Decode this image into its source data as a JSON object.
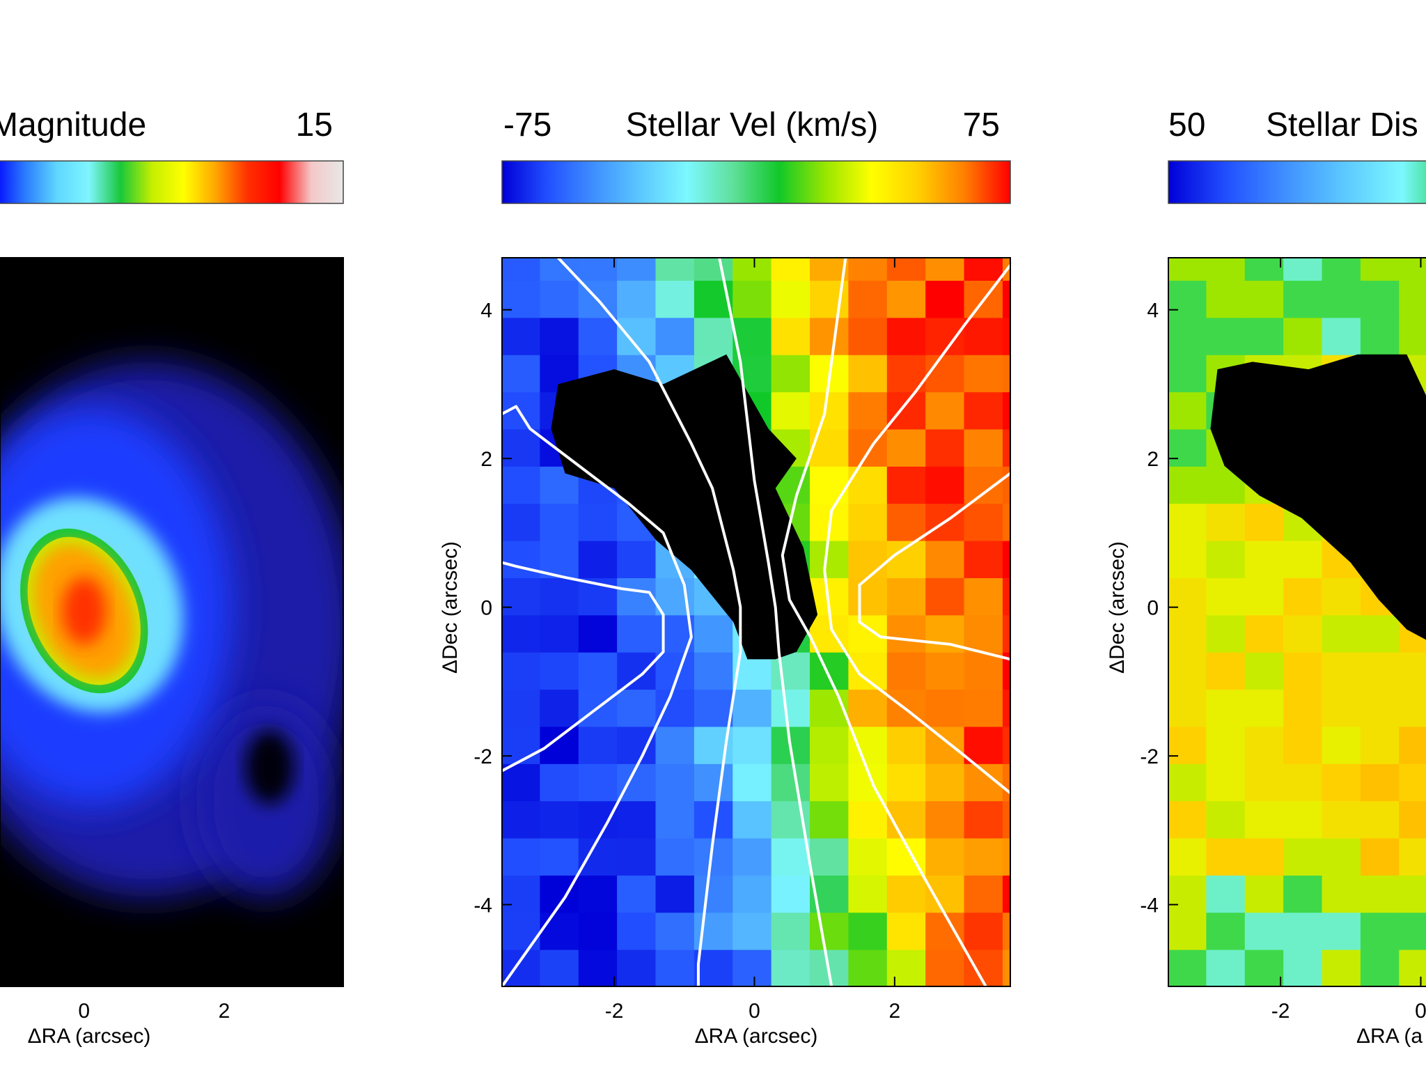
{
  "colors": {
    "background": "#ffffff",
    "masked": "#000000",
    "contour": "#ffffff",
    "frame": "#000000"
  },
  "panels": [
    {
      "colorbar": {
        "min_label": "",
        "title": "Magnitude",
        "max_label": "15",
        "scale": [
          "#0000ff",
          "#2a7bff",
          "#5fd6ff",
          "#7ff5ff",
          "#18c83a",
          "#c6ef00",
          "#ffff00",
          "#ffa500",
          "#ff3000",
          "#ff0000",
          "#f4c8c8",
          "#e8e8e8"
        ]
      },
      "axes": {
        "x_label": "ΔRA (arcsec)",
        "y_label": "",
        "x_ticks": [
          "0",
          "2"
        ],
        "y_ticks": []
      }
    },
    {
      "colorbar": {
        "min_label": "-75",
        "title": "Stellar Vel (km/s)",
        "max_label": "75",
        "scale": [
          "#0000d8",
          "#2250ff",
          "#3f90ff",
          "#5cc8ff",
          "#7cf8ff",
          "#5fe09a",
          "#11c829",
          "#98e600",
          "#ffff00",
          "#ffd000",
          "#ff8000",
          "#ff0000"
        ]
      },
      "axes": {
        "x_label": "ΔRA (arcsec)",
        "y_label": "ΔDec (arcsec)",
        "x_ticks": [
          "-2",
          "0",
          "2"
        ],
        "y_ticks": [
          "4",
          "2",
          "0",
          "-2",
          "-4"
        ]
      }
    },
    {
      "colorbar": {
        "min_label": "50",
        "title": "Stellar Dis",
        "max_label": "",
        "scale": [
          "#0000d8",
          "#2250ff",
          "#3f90ff",
          "#5cc8ff",
          "#7cf8ff",
          "#11c829"
        ]
      },
      "axes": {
        "x_label": "ΔRA (a",
        "y_label": "ΔDec (arcsec)",
        "x_ticks": [
          "-2",
          "0"
        ],
        "y_ticks": [
          "4",
          "2",
          "0",
          "-2",
          "-4"
        ]
      }
    }
  ],
  "chart_data": [
    {
      "type": "heatmap",
      "title": "Magnitude",
      "colorbar_max": 15,
      "xlabel": "ΔRA (arcsec)",
      "x_ticks": [
        0,
        2
      ],
      "xlim": [
        -1.2,
        3.7
      ],
      "ylim": [
        -5.1,
        4.7
      ],
      "features": {
        "peak_center": [
          0.0,
          -0.05
        ],
        "peak_radius": [
          0.45,
          0.65
        ],
        "ring_radius": [
          0.85,
          1.15
        ],
        "ring_tilt_deg": -22,
        "envelope_center": [
          0.1,
          0.0
        ],
        "envelope_radius": [
          1.3,
          1.85
        ],
        "dark_blob_center": [
          2.65,
          -2.15
        ],
        "dark_blob_radius": [
          0.35,
          0.5
        ]
      }
    },
    {
      "type": "heatmap",
      "title": "Stellar Vel (km/s)",
      "clim": [
        -75,
        75
      ],
      "xlabel": "ΔRA (arcsec)",
      "ylabel": "ΔDec (arcsec)",
      "x_ticks": [
        -2,
        0,
        2
      ],
      "y_ticks": [
        4,
        2,
        0,
        -2,
        -4
      ],
      "xlim": [
        -3.6,
        3.65
      ],
      "ylim": [
        -5.1,
        4.7
      ],
      "bin_size_arcsec": [
        0.55,
        0.5
      ],
      "velocity_field": {
        "kinematic_pa_deg": 80,
        "v_max": 70,
        "turnover_radius": 2.2
      },
      "masked_region": [
        [
          -2.8,
          3.0
        ],
        [
          -2.0,
          3.2
        ],
        [
          -1.3,
          3.0
        ],
        [
          -0.4,
          3.4
        ],
        [
          0.2,
          2.4
        ],
        [
          0.6,
          2.0
        ],
        [
          0.3,
          1.6
        ],
        [
          0.7,
          0.8
        ],
        [
          0.9,
          -0.1
        ],
        [
          0.6,
          -0.6
        ],
        [
          0.3,
          -0.7
        ],
        [
          -0.1,
          -0.7
        ],
        [
          -0.3,
          -0.2
        ],
        [
          -0.9,
          0.5
        ],
        [
          -1.4,
          0.9
        ],
        [
          -2.0,
          1.6
        ],
        [
          -2.7,
          1.8
        ],
        [
          -2.9,
          2.4
        ]
      ],
      "contours": [
        [
          [
            -2.8,
            4.7
          ],
          [
            -2.2,
            4.1
          ],
          [
            -1.5,
            3.3
          ],
          [
            -0.9,
            2.2
          ],
          [
            -0.6,
            1.6
          ],
          [
            -0.3,
            0.5
          ],
          [
            -0.2,
            0.0
          ],
          [
            -0.2,
            -0.6
          ],
          [
            -0.4,
            -1.8
          ],
          [
            -0.6,
            -3.2
          ],
          [
            -0.8,
            -4.8
          ],
          [
            -0.8,
            -5.1
          ]
        ],
        [
          [
            -0.5,
            4.7
          ],
          [
            -0.2,
            3.3
          ],
          [
            0.0,
            1.7
          ],
          [
            0.2,
            0.6
          ],
          [
            0.3,
            0.0
          ],
          [
            0.35,
            -0.6
          ],
          [
            0.5,
            -1.8
          ],
          [
            0.8,
            -3.5
          ],
          [
            1.1,
            -5.1
          ]
        ],
        [
          [
            1.3,
            4.7
          ],
          [
            1.0,
            2.6
          ],
          [
            0.6,
            1.5
          ],
          [
            0.4,
            0.7
          ],
          [
            0.5,
            0.1
          ],
          [
            0.8,
            -0.4
          ],
          [
            1.2,
            -1.2
          ],
          [
            1.7,
            -2.4
          ],
          [
            2.4,
            -3.6
          ],
          [
            3.3,
            -5.1
          ]
        ],
        [
          [
            3.65,
            4.6
          ],
          [
            3.0,
            3.8
          ],
          [
            2.3,
            2.9
          ],
          [
            1.7,
            2.2
          ],
          [
            1.1,
            1.3
          ],
          [
            1.0,
            0.5
          ],
          [
            1.1,
            -0.3
          ],
          [
            1.5,
            -0.9
          ],
          [
            2.2,
            -1.4
          ],
          [
            3.0,
            -2.0
          ],
          [
            3.65,
            -2.5
          ]
        ],
        [
          [
            3.65,
            1.8
          ],
          [
            2.8,
            1.2
          ],
          [
            2.0,
            0.7
          ],
          [
            1.5,
            0.3
          ],
          [
            1.5,
            -0.2
          ],
          [
            1.8,
            -0.4
          ],
          [
            2.8,
            -0.5
          ],
          [
            3.65,
            -0.7
          ]
        ],
        [
          [
            -3.6,
            2.6
          ],
          [
            -3.4,
            2.7
          ],
          [
            -3.2,
            2.4
          ],
          [
            -2.5,
            1.9
          ],
          [
            -1.8,
            1.4
          ],
          [
            -1.3,
            1.0
          ],
          [
            -1.0,
            0.3
          ],
          [
            -0.9,
            -0.4
          ],
          [
            -1.2,
            -1.2
          ],
          [
            -1.6,
            -2.0
          ],
          [
            -2.1,
            -2.9
          ],
          [
            -2.7,
            -3.9
          ],
          [
            -3.3,
            -4.7
          ],
          [
            -3.6,
            -5.1
          ]
        ],
        [
          [
            -3.6,
            0.6
          ],
          [
            -3.4,
            0.55
          ],
          [
            -2.7,
            0.4
          ],
          [
            -1.9,
            0.25
          ],
          [
            -1.5,
            0.2
          ],
          [
            -1.3,
            -0.1
          ],
          [
            -1.3,
            -0.6
          ],
          [
            -1.6,
            -0.9
          ],
          [
            -2.3,
            -1.4
          ],
          [
            -3.0,
            -1.9
          ],
          [
            -3.6,
            -2.2
          ]
        ]
      ]
    },
    {
      "type": "heatmap",
      "title": "Stellar Dis",
      "colorbar_min": 50,
      "xlabel": "ΔRA (a",
      "ylabel": "ΔDec (arcsec)",
      "x_ticks": [
        -2,
        0
      ],
      "y_ticks": [
        4,
        2,
        0,
        -2,
        -4
      ],
      "xlim": [
        -3.6,
        3.65
      ],
      "ylim": [
        -5.1,
        4.7
      ],
      "bin_size_arcsec": [
        0.55,
        0.5
      ],
      "masked_region": [
        [
          -2.9,
          3.2
        ],
        [
          -2.4,
          3.3
        ],
        [
          -1.6,
          3.2
        ],
        [
          -0.9,
          3.4
        ],
        [
          -0.2,
          3.4
        ],
        [
          0.2,
          2.6
        ],
        [
          0.2,
          -0.5
        ],
        [
          -0.2,
          -0.3
        ],
        [
          -0.6,
          0.1
        ],
        [
          -1.0,
          0.6
        ],
        [
          -1.7,
          1.2
        ],
        [
          -2.3,
          1.5
        ],
        [
          -2.8,
          1.9
        ],
        [
          -3.0,
          2.4
        ]
      ]
    }
  ]
}
